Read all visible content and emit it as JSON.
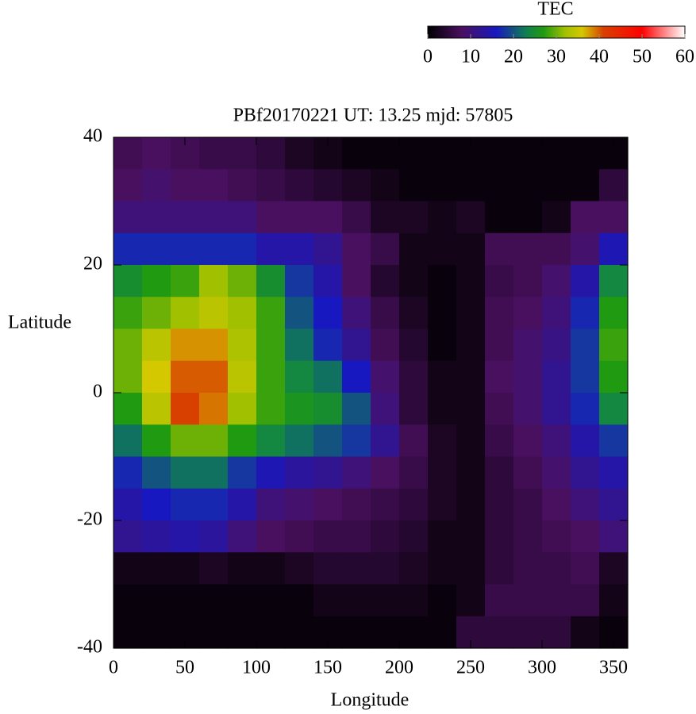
{
  "chart_data": {
    "type": "heatmap",
    "title": "PBf20170221  UT: 13.25  mjd: 57805",
    "x_label": "Longitude",
    "y_label": "Latitude",
    "colorbar_label": "TEC",
    "xlim": [
      0,
      360
    ],
    "xticks": [
      0,
      50,
      100,
      150,
      200,
      250,
      300,
      350
    ],
    "ylim": [
      -40,
      40
    ],
    "yticks": [
      -40,
      -20,
      0,
      20,
      40
    ],
    "clim": [
      0,
      60
    ],
    "cticks": [
      0,
      10,
      20,
      30,
      40,
      50,
      60
    ],
    "colormap": [
      {
        "value": 0,
        "color": "#000000"
      },
      {
        "value": 8,
        "color": "#4a1060"
      },
      {
        "value": 16,
        "color": "#1818c0"
      },
      {
        "value": 23,
        "color": "#108050"
      },
      {
        "value": 27,
        "color": "#209a10"
      },
      {
        "value": 32,
        "color": "#a0c000"
      },
      {
        "value": 36,
        "color": "#d4c800"
      },
      {
        "value": 41,
        "color": "#d84000"
      },
      {
        "value": 50,
        "color": "#ff0000"
      },
      {
        "value": 60,
        "color": "#ffffff"
      }
    ],
    "x": [
      10,
      30,
      50,
      70,
      90,
      110,
      130,
      150,
      170,
      190,
      210,
      230,
      250,
      270,
      290,
      310,
      330,
      350
    ],
    "y": [
      37.5,
      32.5,
      27.5,
      22.5,
      17.5,
      12.5,
      7.5,
      2.5,
      -2.5,
      -7.5,
      -12.5,
      -17.5,
      -22.5,
      -27.5,
      -32.5,
      -37.5
    ],
    "values": [
      [
        7,
        8,
        7,
        6,
        6,
        5,
        3,
        2,
        1,
        1,
        1,
        1,
        1,
        1,
        1,
        1,
        1,
        1
      ],
      [
        8,
        9,
        8,
        8,
        7,
        6,
        5,
        4,
        3,
        2,
        1,
        1,
        1,
        1,
        1,
        1,
        1,
        5
      ],
      [
        10,
        10,
        10,
        10,
        10,
        8,
        8,
        8,
        6,
        3,
        3,
        2,
        3,
        1,
        1,
        2,
        8,
        8
      ],
      [
        17,
        17,
        17,
        17,
        17,
        14,
        14,
        12,
        8,
        6,
        2,
        2,
        2,
        7,
        7,
        7,
        9,
        15
      ],
      [
        25,
        27,
        28,
        32,
        30,
        25,
        18,
        14,
        8,
        4,
        2,
        1,
        2,
        6,
        7,
        9,
        14,
        24
      ],
      [
        28,
        30,
        32,
        34,
        32,
        28,
        20,
        16,
        10,
        6,
        3,
        1,
        2,
        7,
        8,
        10,
        17,
        27
      ],
      [
        30,
        34,
        38,
        38,
        33,
        28,
        22,
        17,
        12,
        7,
        4,
        1,
        2,
        7,
        9,
        11,
        18,
        28
      ],
      [
        30,
        36,
        40,
        40,
        34,
        28,
        24,
        22,
        16,
        9,
        5,
        2,
        2,
        8,
        9,
        12,
        18,
        27
      ],
      [
        27,
        34,
        41,
        39,
        32,
        28,
        26,
        25,
        20,
        10,
        5,
        2,
        2,
        7,
        9,
        12,
        17,
        24
      ],
      [
        22,
        27,
        30,
        30,
        27,
        24,
        22,
        20,
        18,
        12,
        7,
        3,
        2,
        6,
        8,
        10,
        14,
        18
      ],
      [
        17,
        20,
        22,
        22,
        18,
        15,
        13,
        12,
        10,
        8,
        6,
        3,
        2,
        5,
        7,
        9,
        12,
        14
      ],
      [
        14,
        16,
        17,
        17,
        14,
        10,
        9,
        8,
        7,
        6,
        5,
        3,
        2,
        5,
        6,
        8,
        10,
        12
      ],
      [
        12,
        13,
        14,
        13,
        10,
        8,
        7,
        6,
        6,
        5,
        4,
        2,
        2,
        5,
        6,
        7,
        8,
        10
      ],
      [
        2,
        2,
        2,
        3,
        2,
        2,
        3,
        4,
        4,
        4,
        3,
        2,
        2,
        5,
        6,
        6,
        7,
        3
      ],
      [
        1,
        1,
        1,
        1,
        1,
        1,
        1,
        2,
        2,
        2,
        2,
        1,
        2,
        6,
        6,
        6,
        6,
        2
      ],
      [
        1,
        1,
        1,
        1,
        1,
        1,
        1,
        1,
        1,
        1,
        1,
        1,
        5,
        5,
        5,
        5,
        2,
        1
      ]
    ]
  }
}
